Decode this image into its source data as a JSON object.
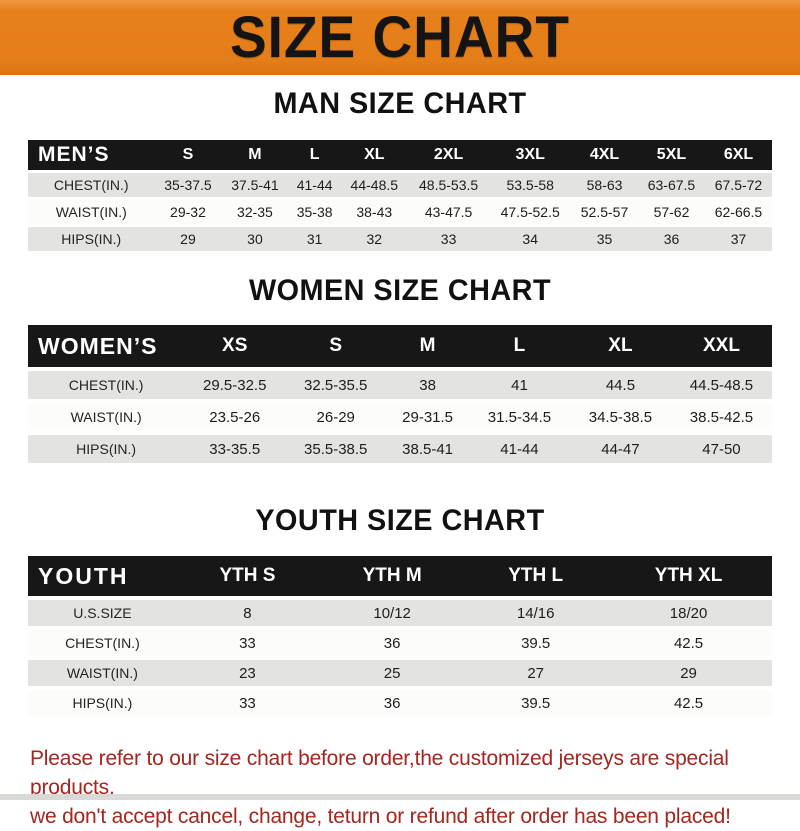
{
  "banner": {
    "title": "SIZE CHART"
  },
  "sections": [
    {
      "heading": "MAN SIZE CHART",
      "corner_label": "MEN’S",
      "columns": [
        "S",
        "M",
        "L",
        "XL",
        "2XL",
        "3XL",
        "4XL",
        "5XL",
        "6XL"
      ],
      "rows": [
        {
          "label": "CHEST(IN.)",
          "values": [
            "35-37.5",
            "37.5-41",
            "41-44",
            "44-48.5",
            "48.5-53.5",
            "53.5-58",
            "58-63",
            "63-67.5",
            "67.5-72"
          ]
        },
        {
          "label": "WAIST(IN.)",
          "values": [
            "29-32",
            "32-35",
            "35-38",
            "38-43",
            "43-47.5",
            "47.5-52.5",
            "52.5-57",
            "57-62",
            "62-66.5"
          ]
        },
        {
          "label": "HIPS(IN.)",
          "values": [
            "29",
            "30",
            "31",
            "32",
            "33",
            "34",
            "35",
            "36",
            "37"
          ]
        }
      ]
    },
    {
      "heading": "WOMEN SIZE CHART",
      "corner_label": "WOMEN’S",
      "columns": [
        "XS",
        "S",
        "M",
        "L",
        "XL",
        "XXL"
      ],
      "rows": [
        {
          "label": "CHEST(IN.)",
          "values": [
            "29.5-32.5",
            "32.5-35.5",
            "38",
            "41",
            "44.5",
            "44.5-48.5"
          ]
        },
        {
          "label": "WAIST(IN.)",
          "values": [
            "23.5-26",
            "26-29",
            "29-31.5",
            "31.5-34.5",
            "34.5-38.5",
            "38.5-42.5"
          ]
        },
        {
          "label": "HIPS(IN.)",
          "values": [
            "33-35.5",
            "35.5-38.5",
            "38.5-41",
            "41-44",
            "44-47",
            "47-50"
          ]
        }
      ]
    },
    {
      "heading": "YOUTH SIZE CHART",
      "corner_label": "YOUTH",
      "columns": [
        "YTH S",
        "YTH M",
        "YTH L",
        "YTH XL"
      ],
      "rows": [
        {
          "label": "U.S.SIZE",
          "values": [
            "8",
            "10/12",
            "14/16",
            "18/20"
          ]
        },
        {
          "label": "CHEST(IN.)",
          "values": [
            "33",
            "36",
            "39.5",
            "42.5"
          ]
        },
        {
          "label": "WAIST(IN.)",
          "values": [
            "23",
            "25",
            "27",
            "29"
          ]
        },
        {
          "label": "HIPS(IN.)",
          "values": [
            "33",
            "36",
            "39.5",
            "42.5"
          ]
        }
      ]
    }
  ],
  "footer": {
    "line1": "Please refer to our size chart before order,the customized jerseys are special products,",
    "line2": "we don't accept cancel, change, teturn or refund after order has been placed!"
  },
  "colors": {
    "banner_bg": "#E6801B",
    "table_header_bg": "#171717",
    "row_gray": "#E3E3E1",
    "row_white": "#FCFCFB",
    "footer_red": "#A5261E"
  }
}
